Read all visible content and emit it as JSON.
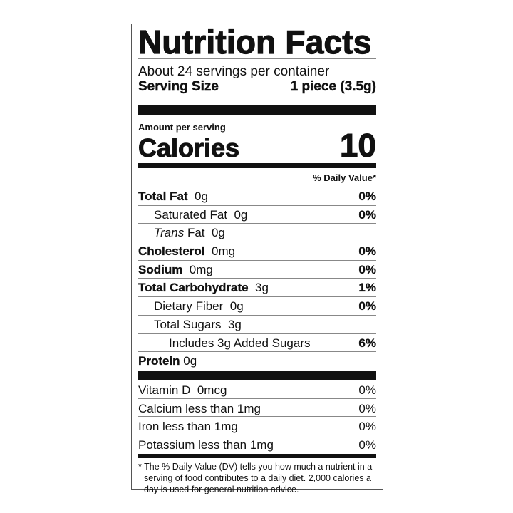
{
  "title": "Nutrition Facts",
  "servings_per_container": "About 24 servings per container",
  "serving_size": {
    "label": "Serving Size",
    "value": "1 piece (3.5g)"
  },
  "amount_per_serving": "Amount per serving",
  "calories": {
    "label": "Calories",
    "value": "10"
  },
  "daily_value_header": "% Daily Value*",
  "nutrients": [
    {
      "name": "Total Fat",
      "amount": "0g",
      "dv": "0%"
    },
    {
      "name": "Saturated Fat",
      "amount": "0g",
      "dv": "0%"
    },
    {
      "name": "Trans",
      "name_suffix": "Fat",
      "amount": "0g",
      "dv": ""
    },
    {
      "name": "Cholesterol",
      "amount": "0mg",
      "dv": "0%"
    },
    {
      "name": "Sodium",
      "amount": "0mg",
      "dv": "0%"
    },
    {
      "name": "Total Carbohydrate",
      "amount": "3g",
      "dv": "1%"
    },
    {
      "name": "Dietary Fiber",
      "amount": "0g",
      "dv": "0%"
    },
    {
      "name": "Total Sugars",
      "amount": "3g",
      "dv": ""
    },
    {
      "name": "Includes 3g Added Sugars",
      "amount": "",
      "dv": "6%"
    },
    {
      "name": "Protein",
      "amount": "0g",
      "dv": ""
    }
  ],
  "vitamins": [
    {
      "text": "Vitamin D  0mcg",
      "dv": "0%"
    },
    {
      "text": "Calcium less than 1mg",
      "dv": "0%"
    },
    {
      "text": "Iron less than 1mg",
      "dv": "0%"
    },
    {
      "text": "Potassium less than 1mg",
      "dv": "0%"
    }
  ],
  "footnote": "* The % Daily Value (DV) tells you how much a nutrient in a serving of food contributes to a daily diet. 2,000 calories a day is used for general nutrition advice."
}
